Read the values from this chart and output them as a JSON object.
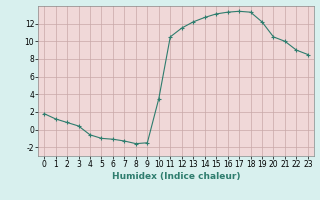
{
  "x": [
    0,
    1,
    2,
    3,
    4,
    5,
    6,
    7,
    8,
    9,
    10,
    11,
    12,
    13,
    14,
    15,
    16,
    17,
    18,
    19,
    20,
    21,
    22,
    23
  ],
  "y": [
    1.8,
    1.2,
    0.8,
    0.4,
    -0.6,
    -1.0,
    -1.1,
    -1.3,
    -1.6,
    -1.5,
    3.5,
    10.5,
    11.5,
    12.2,
    12.7,
    13.1,
    13.3,
    13.4,
    13.3,
    12.2,
    10.5,
    10.0,
    9.0,
    8.5
  ],
  "line_color": "#2e7d6e",
  "marker": "+",
  "marker_size": 3,
  "bg_color": "#d8f0ee",
  "plot_bg_color": "#f0d8d8",
  "grid_color": "#c8a8a8",
  "xlabel": "Humidex (Indice chaleur)",
  "xlim": [
    -0.5,
    23.5
  ],
  "ylim": [
    -3,
    14
  ],
  "yticks": [
    -2,
    0,
    2,
    4,
    6,
    8,
    10,
    12
  ],
  "xticks": [
    0,
    1,
    2,
    3,
    4,
    5,
    6,
    7,
    8,
    9,
    10,
    11,
    12,
    13,
    14,
    15,
    16,
    17,
    18,
    19,
    20,
    21,
    22,
    23
  ],
  "xlabel_fontsize": 6.5,
  "tick_fontsize": 5.5
}
